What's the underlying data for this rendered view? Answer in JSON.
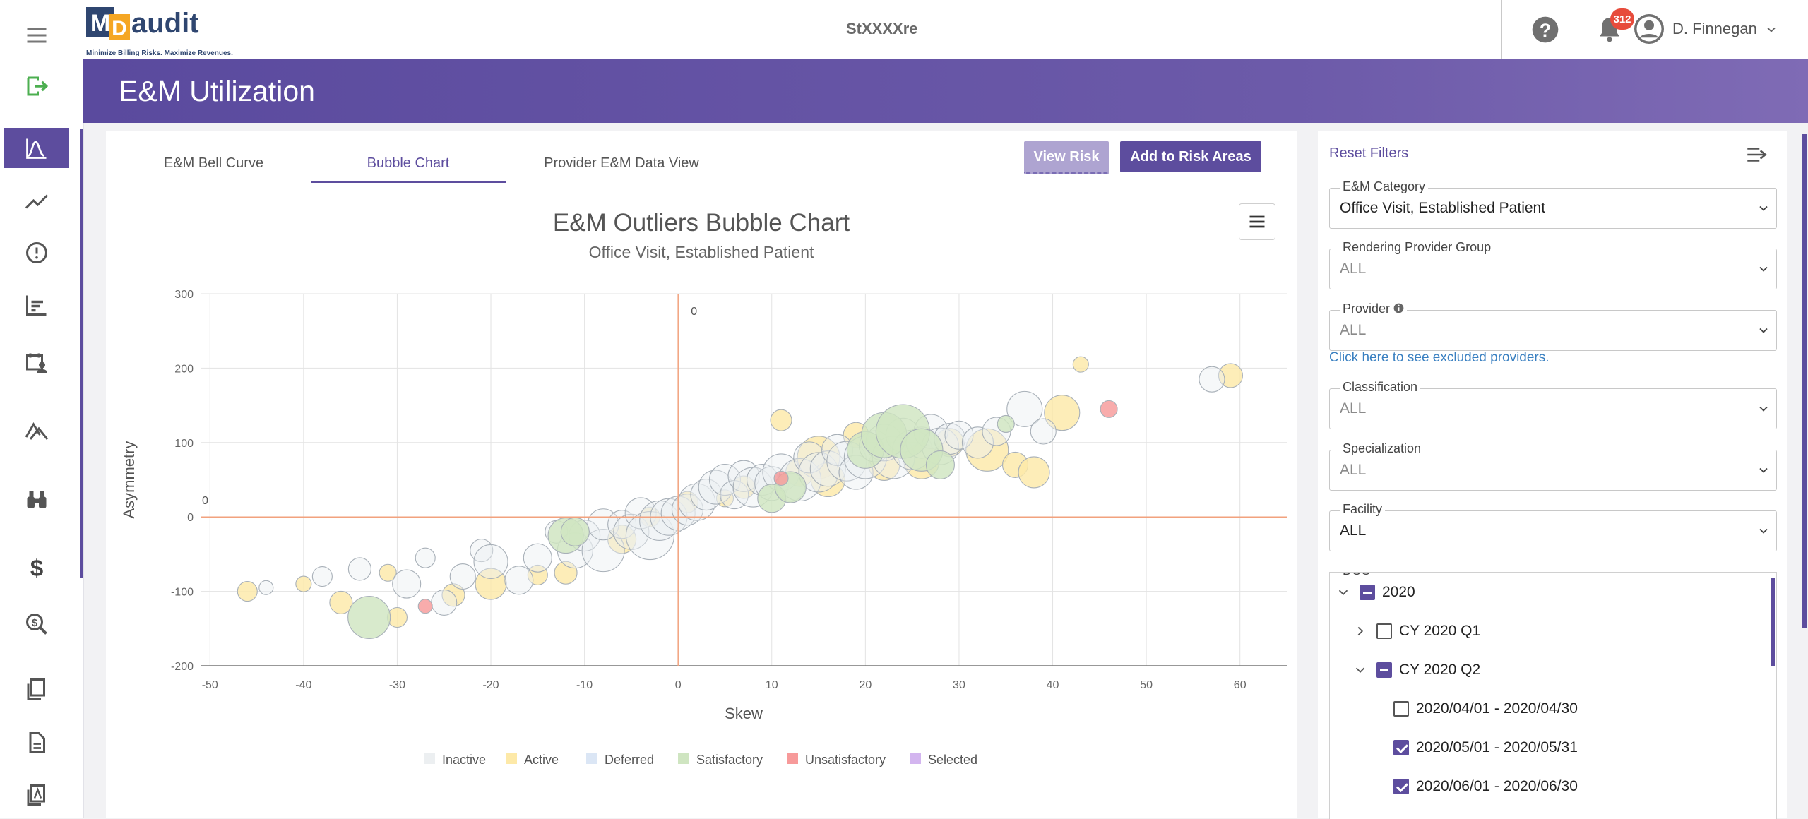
{
  "app": {
    "title": "StXXXXre",
    "logo_text": "MDaudit",
    "logo_tagline": "Minimize Billing Risks. Maximize Revenues."
  },
  "header": {
    "notification_count": "312",
    "user_name": "D. Finnegan"
  },
  "sidebar": {
    "items": [
      {
        "icon": "menu-icon"
      },
      {
        "icon": "logout-icon"
      },
      {
        "icon": "bell-curve-icon",
        "active": true
      },
      {
        "icon": "trend-line-icon"
      },
      {
        "icon": "alert-circle-icon"
      },
      {
        "icon": "bar-chart-icon"
      },
      {
        "icon": "calendar-user-icon"
      },
      {
        "icon": "mountain-chart-icon"
      },
      {
        "icon": "binoculars-icon"
      },
      {
        "icon": "dollar-icon"
      },
      {
        "icon": "search-dollar-icon"
      },
      {
        "icon": "documents-icon"
      },
      {
        "icon": "document-icon"
      },
      {
        "icon": "pdf-document-icon"
      }
    ]
  },
  "page": {
    "title": "E&M Utilization"
  },
  "tabs": [
    {
      "label": "E&M Bell Curve",
      "active": false
    },
    {
      "label": "Bubble Chart",
      "active": true
    },
    {
      "label": "Provider E&M Data View",
      "active": false
    }
  ],
  "buttons": {
    "view_risk": "View Risk",
    "add_risk": "Add to Risk Areas"
  },
  "chart_data": {
    "type": "scatter",
    "title": "E&M Outliers Bubble Chart",
    "subtitle": "Office Visit, Established Patient",
    "xlabel": "Skew",
    "ylabel": "Asymmetry",
    "xlim": [
      -51,
      65
    ],
    "ylim": [
      -200,
      300
    ],
    "x_ticks": [
      -50,
      -40,
      -30,
      -20,
      -10,
      0,
      10,
      20,
      30,
      40,
      50,
      60
    ],
    "y_ticks": [
      -200,
      -100,
      0,
      100,
      200,
      300
    ],
    "plot_line_label_x": "0",
    "plot_line_label_y": "0",
    "grid": true,
    "legend_position": "bottom",
    "legend": [
      {
        "name": "Inactive",
        "color": "#eceff1"
      },
      {
        "name": "Active",
        "color": "#fde9a8"
      },
      {
        "name": "Deferred",
        "color": "#dbe6f5"
      },
      {
        "name": "Satisfactory",
        "color": "#cfe5c1"
      },
      {
        "name": "Unsatisfactory",
        "color": "#f79a9a"
      },
      {
        "name": "Selected",
        "color": "#d3b5ef"
      }
    ],
    "series": [
      {
        "name": "Active",
        "color": "#fde9a8",
        "points": [
          [
            -46,
            -100,
            14
          ],
          [
            -40,
            -90,
            11
          ],
          [
            -36,
            -115,
            16
          ],
          [
            -31,
            -75,
            12
          ],
          [
            -30,
            -135,
            14
          ],
          [
            -24,
            -105,
            16
          ],
          [
            -20,
            -90,
            22
          ],
          [
            -15,
            -78,
            14
          ],
          [
            -12,
            -75,
            16
          ],
          [
            -6,
            -30,
            20
          ],
          [
            -3,
            0,
            14
          ],
          [
            1,
            20,
            15
          ],
          [
            5,
            25,
            12
          ],
          [
            7,
            40,
            16
          ],
          [
            11,
            130,
            15
          ],
          [
            13,
            60,
            20
          ],
          [
            15,
            80,
            30
          ],
          [
            16,
            50,
            24
          ],
          [
            19,
            110,
            18
          ],
          [
            22,
            70,
            22
          ],
          [
            26,
            75,
            25
          ],
          [
            29,
            100,
            20
          ],
          [
            33,
            90,
            30
          ],
          [
            36,
            70,
            18
          ],
          [
            38,
            60,
            22
          ],
          [
            41,
            140,
            25
          ],
          [
            43,
            205,
            11
          ],
          [
            59,
            190,
            17
          ]
        ]
      },
      {
        "name": "Inactive",
        "color": "#eceff1",
        "points": [
          [
            -44,
            -95,
            10
          ],
          [
            -38,
            -80,
            14
          ],
          [
            -34,
            -70,
            16
          ],
          [
            -29,
            -90,
            20
          ],
          [
            -27,
            -55,
            14
          ],
          [
            -25,
            -115,
            18
          ],
          [
            -23,
            -80,
            18
          ],
          [
            -21,
            -45,
            16
          ],
          [
            -20,
            -60,
            24
          ],
          [
            -17,
            -85,
            20
          ],
          [
            -15,
            -55,
            20
          ],
          [
            -13,
            -20,
            16
          ],
          [
            -11,
            -45,
            25
          ],
          [
            -10,
            -25,
            22
          ],
          [
            -8,
            -45,
            30
          ],
          [
            -8,
            -10,
            22
          ],
          [
            -6,
            -10,
            20
          ],
          [
            -5,
            -20,
            25
          ],
          [
            -4,
            5,
            22
          ],
          [
            -3,
            -25,
            34
          ],
          [
            -2,
            -5,
            28
          ],
          [
            -1,
            0,
            26
          ],
          [
            0,
            5,
            24
          ],
          [
            1,
            10,
            22
          ],
          [
            2,
            20,
            26
          ],
          [
            3,
            30,
            22
          ],
          [
            4,
            40,
            24
          ],
          [
            5,
            50,
            22
          ],
          [
            6,
            30,
            20
          ],
          [
            7,
            55,
            22
          ],
          [
            8,
            40,
            28
          ],
          [
            9,
            50,
            22
          ],
          [
            10,
            45,
            24
          ],
          [
            11,
            60,
            26
          ],
          [
            12,
            40,
            20
          ],
          [
            13,
            50,
            30
          ],
          [
            14,
            80,
            22
          ],
          [
            15,
            60,
            28
          ],
          [
            16,
            65,
            25
          ],
          [
            17,
            90,
            22
          ],
          [
            18,
            75,
            28
          ],
          [
            19,
            60,
            24
          ],
          [
            20,
            80,
            30
          ],
          [
            21,
            95,
            22
          ],
          [
            22,
            100,
            26
          ],
          [
            23,
            80,
            30
          ],
          [
            24,
            110,
            24
          ],
          [
            25,
            90,
            28
          ],
          [
            26,
            100,
            22
          ],
          [
            27,
            115,
            24
          ],
          [
            28,
            95,
            26
          ],
          [
            29,
            105,
            22
          ],
          [
            30,
            110,
            20
          ],
          [
            32,
            100,
            22
          ],
          [
            34,
            115,
            20
          ],
          [
            37,
            145,
            25
          ],
          [
            39,
            115,
            18
          ],
          [
            57,
            185,
            18
          ]
        ]
      },
      {
        "name": "Satisfactory",
        "color": "#cfe5c1",
        "points": [
          [
            -33,
            -135,
            30
          ],
          [
            -12,
            -25,
            25
          ],
          [
            -11,
            -20,
            20
          ],
          [
            10,
            25,
            20
          ],
          [
            12,
            40,
            22
          ],
          [
            20,
            90,
            26
          ],
          [
            22,
            110,
            32
          ],
          [
            24,
            115,
            38
          ],
          [
            26,
            90,
            30
          ],
          [
            28,
            70,
            20
          ],
          [
            35,
            125,
            12
          ]
        ]
      },
      {
        "name": "Unsatisfactory",
        "color": "#f79a9a",
        "points": [
          [
            -27,
            -120,
            10
          ],
          [
            11,
            52,
            10
          ],
          [
            46,
            145,
            12
          ]
        ]
      }
    ]
  },
  "filters": {
    "reset_label": "Reset Filters",
    "em_category": {
      "label": "E&M Category",
      "value": "Office Visit, Established Patient"
    },
    "rendering_group": {
      "label": "Rendering Provider Group",
      "value": "ALL"
    },
    "provider": {
      "label": "Provider",
      "value": "ALL"
    },
    "excluded_link": "Click here to see excluded providers.",
    "classification": {
      "label": "Classification",
      "value": "ALL"
    },
    "specialization": {
      "label": "Specialization",
      "value": "ALL"
    },
    "facility": {
      "label": "Facility",
      "value": "ALL"
    },
    "dos": {
      "label": "DOS",
      "year": "2020",
      "q1": "CY 2020 Q1",
      "q2": "CY 2020 Q2",
      "months": [
        {
          "label": "2020/04/01 - 2020/04/30",
          "checked": false
        },
        {
          "label": "2020/05/01 - 2020/05/31",
          "checked": true
        },
        {
          "label": "2020/06/01 - 2020/06/30",
          "checked": true
        }
      ]
    }
  }
}
